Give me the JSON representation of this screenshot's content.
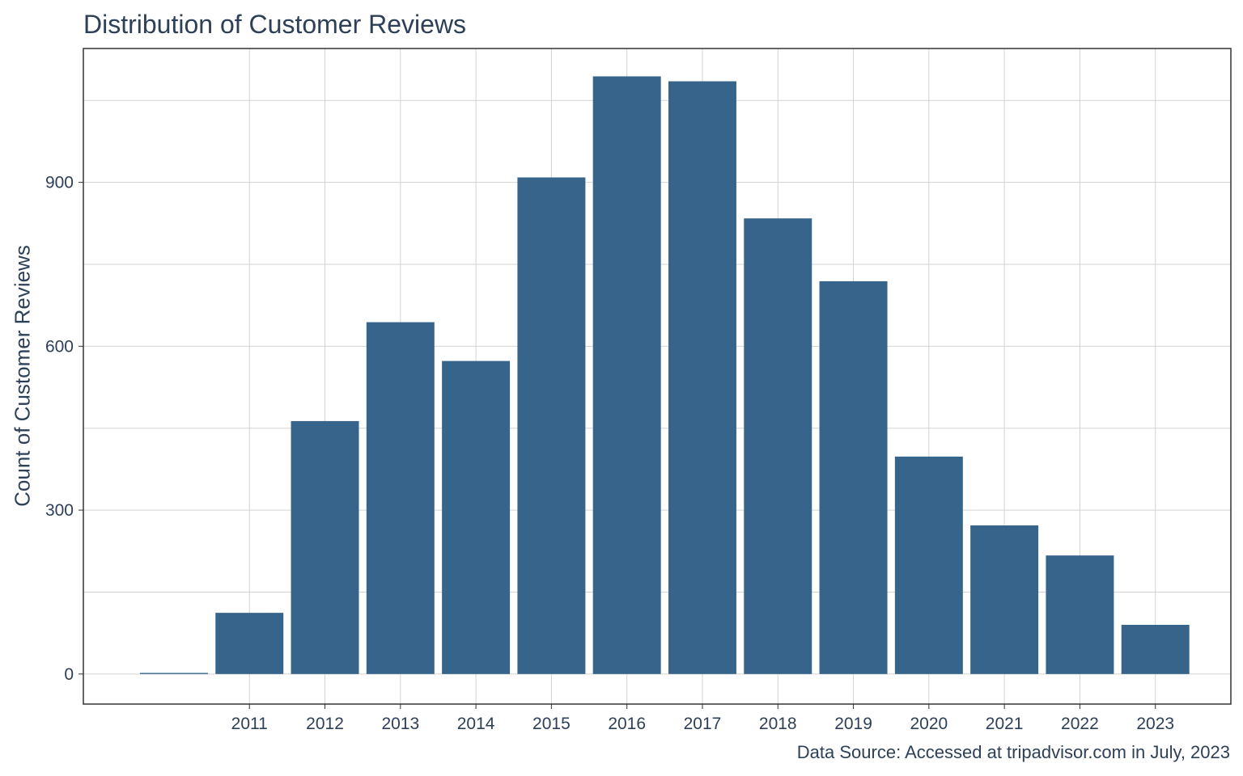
{
  "chart_data": {
    "type": "bar",
    "title": "Distribution of Customer Reviews",
    "xlabel": "",
    "ylabel": "Count of Customer Reviews",
    "caption": "Data Source: Accessed at tripadvisor.com in July, 2023",
    "categories": [
      "",
      "2011",
      "2012",
      "2013",
      "2014",
      "2015",
      "2016",
      "2017",
      "2018",
      "2019",
      "2020",
      "2021",
      "2022",
      "2023"
    ],
    "values": [
      2,
      112,
      463,
      644,
      573,
      909,
      1094,
      1085,
      834,
      719,
      398,
      272,
      217,
      90
    ],
    "yticks": [
      0,
      300,
      600,
      900
    ],
    "ylim": [
      -55,
      1145
    ],
    "grid": true,
    "bar_color": "#37648a",
    "grid_color": "#d3d3d3",
    "panel_border_color": "#333333"
  }
}
